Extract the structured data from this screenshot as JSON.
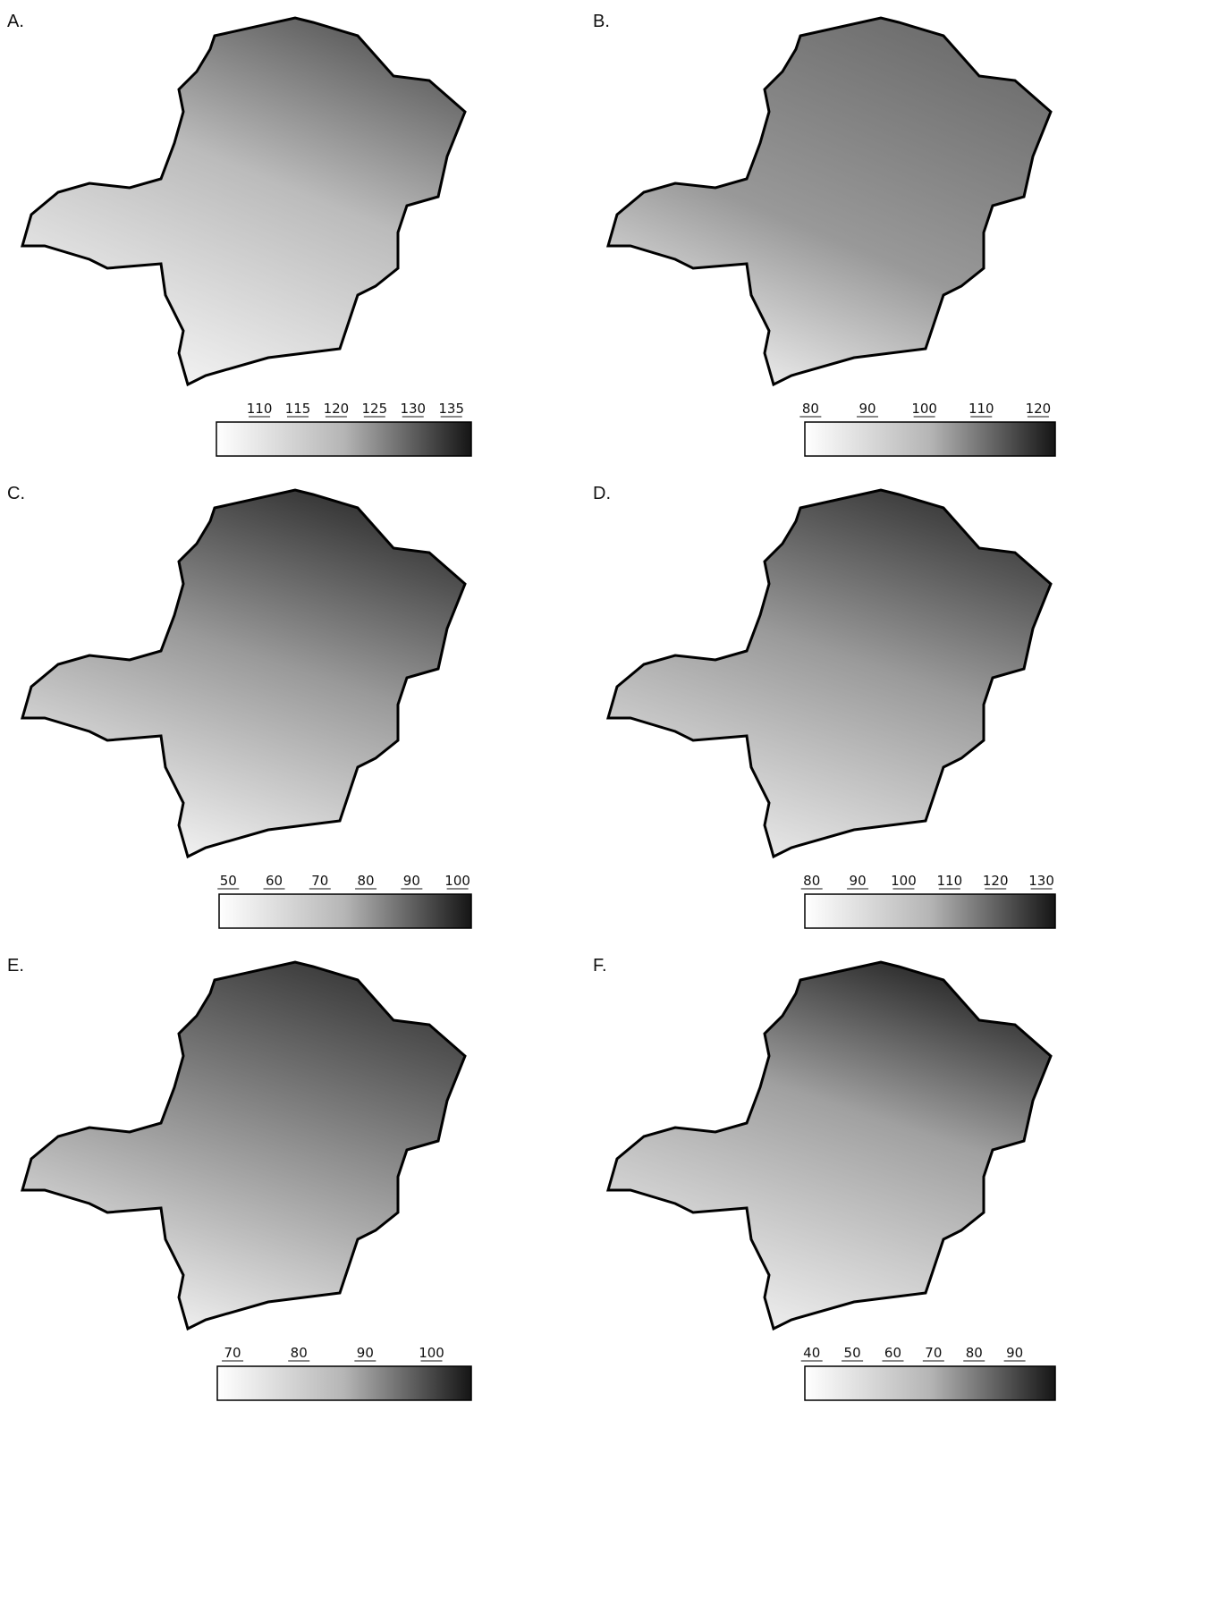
{
  "panels": [
    {
      "label": "A.",
      "scale_range": [
        104.4,
        137.6
      ],
      "ticks": [
        110,
        115,
        120,
        125,
        130,
        135
      ]
    },
    {
      "label": "B.",
      "scale_range": [
        79,
        123
      ],
      "ticks": [
        80,
        90,
        100,
        110,
        120
      ]
    },
    {
      "label": "C.",
      "scale_range": [
        48,
        103
      ],
      "ticks": [
        50,
        60,
        70,
        80,
        90,
        100
      ]
    },
    {
      "label": "D.",
      "scale_range": [
        78.5,
        133
      ],
      "ticks": [
        80,
        90,
        100,
        110,
        120,
        130
      ]
    },
    {
      "label": "E.",
      "scale_range": [
        67.7,
        106
      ],
      "ticks": [
        70,
        80,
        90,
        100
      ]
    },
    {
      "label": "F.",
      "scale_range": [
        38.3,
        100
      ],
      "ticks": [
        40,
        50,
        60,
        70,
        80,
        90
      ]
    }
  ]
}
